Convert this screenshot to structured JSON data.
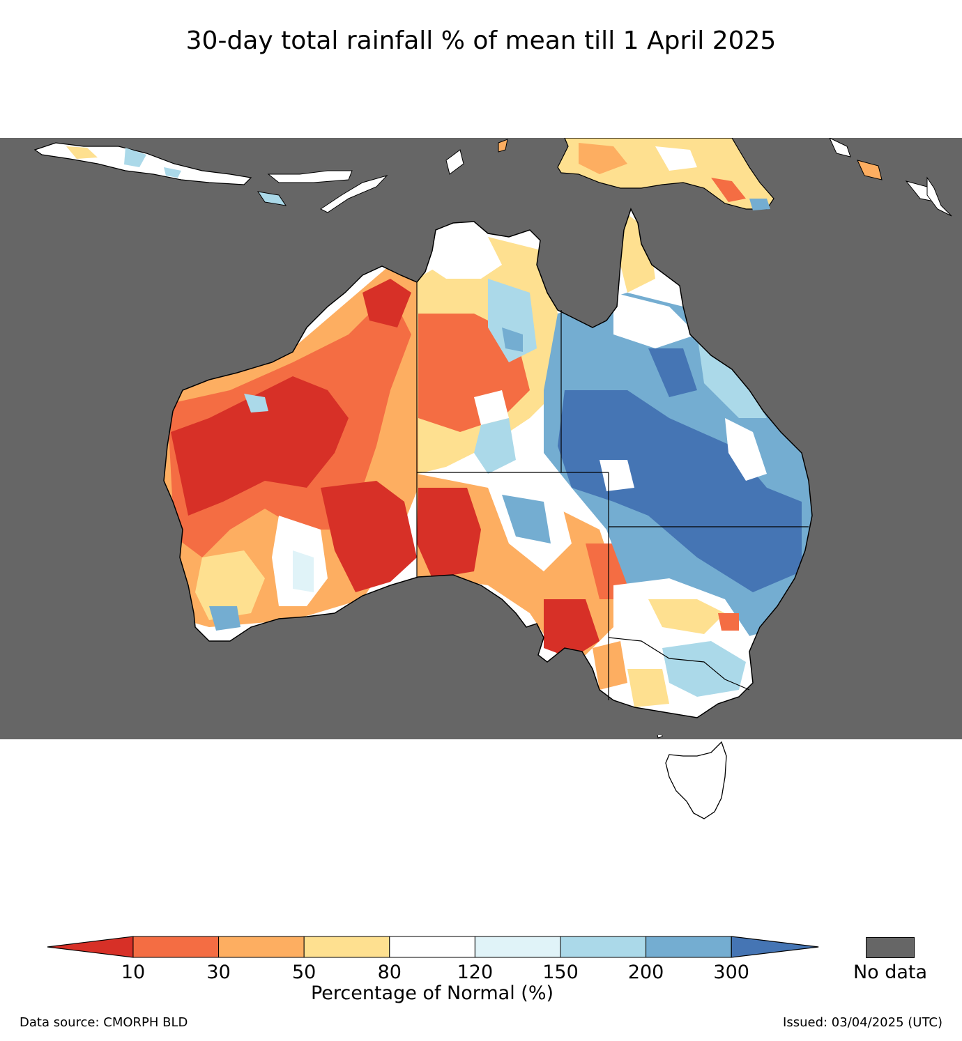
{
  "title": "30-day total rainfall % of mean till 1 April 2025",
  "colorbar": {
    "ticks": [
      "10",
      "30",
      "50",
      "80",
      "120",
      "150",
      "200",
      "300"
    ],
    "colors": [
      "#d73027",
      "#f46d43",
      "#fdae61",
      "#fee090",
      "#ffffff",
      "#e0f3f8",
      "#abd9e9",
      "#74add1",
      "#4575b4"
    ],
    "label": "Percentage of Normal (%)"
  },
  "no_data": {
    "label": "No data",
    "color": "#666666"
  },
  "footer": {
    "source": "Data source: CMORPH BLD",
    "issued": "Issued: 03/04/2025 (UTC)"
  }
}
